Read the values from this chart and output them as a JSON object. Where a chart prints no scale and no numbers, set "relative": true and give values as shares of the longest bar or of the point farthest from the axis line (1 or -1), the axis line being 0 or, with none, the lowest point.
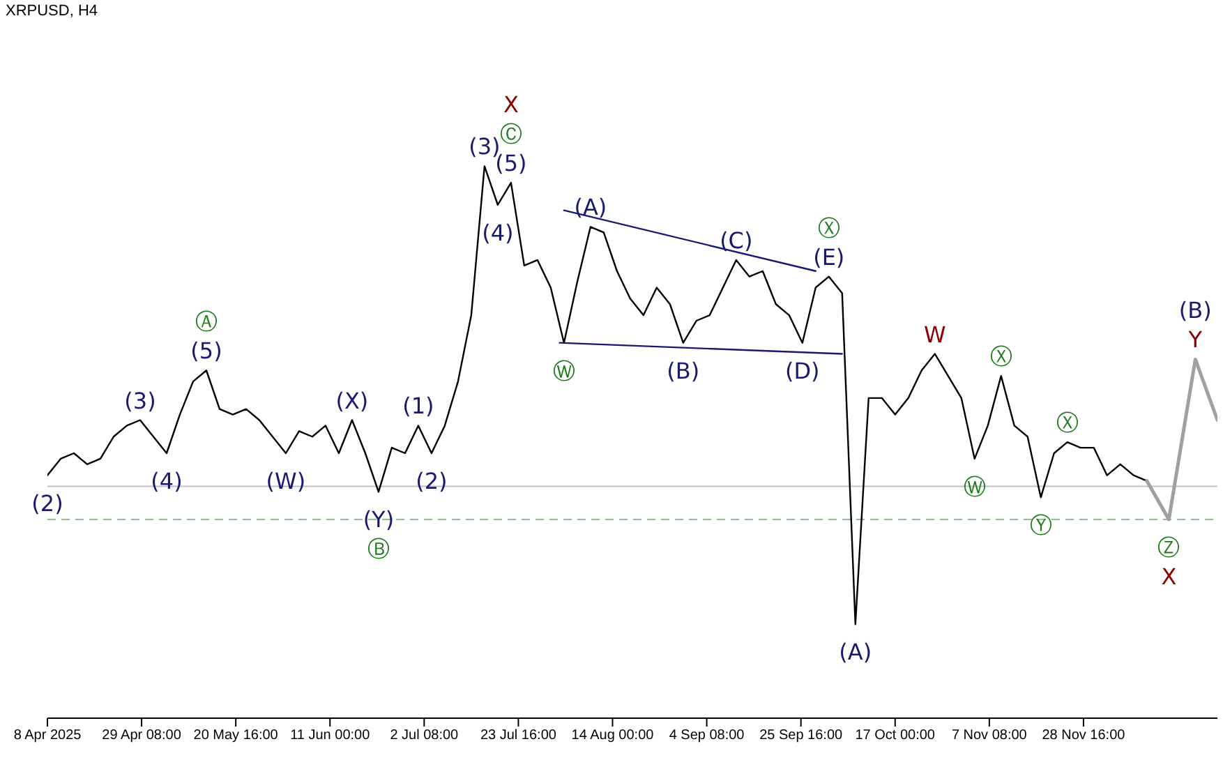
{
  "chart_data": {
    "type": "line",
    "title": "XRPUSD, H4",
    "relative": true,
    "marker": "none",
    "line_style": "solid",
    "grid": false,
    "legend": false,
    "x": [
      "2025-04-08",
      "2025-04-11",
      "2025-04-14",
      "2025-04-17",
      "2025-04-20",
      "2025-04-23",
      "2025-04-26",
      "2025-04-29",
      "2025-05-02",
      "2025-05-05",
      "2025-05-08",
      "2025-05-11",
      "2025-05-14",
      "2025-05-17",
      "2025-05-20",
      "2025-05-23",
      "2025-05-26",
      "2025-05-29",
      "2025-06-01",
      "2025-06-04",
      "2025-06-07",
      "2025-06-10",
      "2025-06-13",
      "2025-06-16",
      "2025-06-19",
      "2025-06-22",
      "2025-06-25",
      "2025-06-28",
      "2025-07-01",
      "2025-07-04",
      "2025-07-07",
      "2025-07-10",
      "2025-07-13",
      "2025-07-16",
      "2025-07-19",
      "2025-07-22",
      "2025-07-25",
      "2025-07-28",
      "2025-07-31",
      "2025-08-03",
      "2025-08-06",
      "2025-08-09",
      "2025-08-12",
      "2025-08-15",
      "2025-08-18",
      "2025-08-21",
      "2025-08-24",
      "2025-08-27",
      "2025-08-30",
      "2025-09-02",
      "2025-09-05",
      "2025-09-08",
      "2025-09-11",
      "2025-09-14",
      "2025-09-17",
      "2025-09-20",
      "2025-09-23",
      "2025-09-26",
      "2025-09-29",
      "2025-10-02",
      "2025-10-05",
      "2025-10-08",
      "2025-10-11",
      "2025-10-14",
      "2025-10-17",
      "2025-10-20",
      "2025-10-23",
      "2025-10-26",
      "2025-10-29",
      "2025-11-01",
      "2025-11-04",
      "2025-11-07",
      "2025-11-10",
      "2025-11-13",
      "2025-11-16",
      "2025-11-19",
      "2025-11-22",
      "2025-11-25",
      "2025-11-28",
      "2025-12-01",
      "2025-12-04",
      "2025-12-07",
      "2025-12-10",
      "2025-12-13"
    ],
    "xlim": [
      "2025-04-08",
      "2025-12-29"
    ],
    "xticks": [
      {
        "value": "2025-04-08",
        "label": "8 Apr 2025"
      },
      {
        "value": "2025-04-29T08:00",
        "label": "29 Apr 08:00"
      },
      {
        "value": "2025-05-20T16:00",
        "label": "20 May 16:00"
      },
      {
        "value": "2025-06-11T00:00",
        "label": "11 Jun 00:00"
      },
      {
        "value": "2025-07-02T08:00",
        "label": "2 Jul 08:00"
      },
      {
        "value": "2025-07-23T16:00",
        "label": "23 Jul 16:00"
      },
      {
        "value": "2025-08-14T00:00",
        "label": "14 Aug 00:00"
      },
      {
        "value": "2025-09-04T08:00",
        "label": "4 Sep 08:00"
      },
      {
        "value": "2025-09-25T16:00",
        "label": "25 Sep 16:00"
      },
      {
        "value": "2025-10-17T00:00",
        "label": "17 Oct 00:00"
      },
      {
        "value": "2025-11-07T08:00",
        "label": "7 Nov 08:00"
      },
      {
        "value": "2025-11-28T16:00",
        "label": "28 Nov 16:00"
      }
    ],
    "series": [
      {
        "color": "#000000",
        "values": [
          0.44,
          0.47,
          0.48,
          0.46,
          0.47,
          0.51,
          0.53,
          0.54,
          0.51,
          0.48,
          0.55,
          0.61,
          0.63,
          0.56,
          0.55,
          0.56,
          0.54,
          0.51,
          0.48,
          0.52,
          0.51,
          0.53,
          0.48,
          0.54,
          0.48,
          0.41,
          0.49,
          0.48,
          0.53,
          0.48,
          0.53,
          0.61,
          0.73,
          1,
          0.93,
          0.97,
          0.82,
          0.83,
          0.78,
          0.68,
          0.79,
          0.89,
          0.88,
          0.81,
          0.76,
          0.73,
          0.78,
          0.75,
          0.68,
          0.72,
          0.73,
          0.78,
          0.83,
          0.8,
          0.81,
          0.75,
          0.73,
          0.68,
          0.78,
          0.8,
          0.77,
          0.17,
          0.58,
          0.58,
          0.55,
          0.58,
          0.63,
          0.66,
          0.62,
          0.58,
          0.47,
          0.53,
          0.62,
          0.53,
          0.51,
          0.4,
          0.48,
          0.5,
          0.49,
          0.49,
          0.44,
          0.46,
          0.44,
          0.43
        ]
      },
      {
        "color": "#a0a0a0",
        "x": [
          "2025-12-13",
          "2025-12-18",
          "2025-12-24",
          "2025-12-29"
        ],
        "values": [
          0.43,
          0.36,
          0.65,
          0.54
        ]
      },
      {
        "color": "#191970",
        "x": [
          "2025-08-03",
          "2025-09-29"
        ],
        "values": [
          0.92,
          0.81
        ]
      },
      {
        "color": "#191970",
        "x": [
          "2025-08-02",
          "2025-10-05"
        ],
        "values": [
          0.68,
          0.66
        ]
      }
    ],
    "ref_lines": [
      {
        "axis": "y",
        "value": 0.42,
        "color": "#c0c0c0"
      },
      {
        "axis": "y",
        "value": 0.36,
        "color": "#90c090",
        "line_style": "dashed"
      }
    ],
    "annotations": [
      {
        "text": "(2)",
        "x": "2025-04-08",
        "y": 0.44
      },
      {
        "text": "(3)",
        "x": "2025-04-29",
        "y": 0.54
      },
      {
        "text": "(4)",
        "x": "2025-05-05",
        "y": 0.48
      },
      {
        "text": "(5)",
        "x": "2025-05-14",
        "y": 0.63
      },
      {
        "text": "Ⓐ",
        "x": "2025-05-14",
        "y": 0.63
      },
      {
        "text": "(W)",
        "x": "2025-06-01",
        "y": 0.48
      },
      {
        "text": "(X)",
        "x": "2025-06-16",
        "y": 0.54
      },
      {
        "text": "(Y)",
        "x": "2025-06-22",
        "y": 0.41
      },
      {
        "text": "Ⓑ",
        "x": "2025-06-22",
        "y": 0.41
      },
      {
        "text": "(1)",
        "x": "2025-07-01",
        "y": 0.53
      },
      {
        "text": "(2)",
        "x": "2025-07-04",
        "y": 0.48
      },
      {
        "text": "(3)",
        "x": "2025-07-16",
        "y": 1
      },
      {
        "text": "(4)",
        "x": "2025-07-19",
        "y": 0.93
      },
      {
        "text": "(5)",
        "x": "2025-07-22",
        "y": 0.97
      },
      {
        "text": "Ⓒ",
        "x": "2025-07-22",
        "y": 0.97
      },
      {
        "text": "X",
        "x": "2025-07-22",
        "y": 0.97
      },
      {
        "text": "Ⓦ",
        "x": "2025-08-03",
        "y": 0.68
      },
      {
        "text": "(A)",
        "x": "2025-08-09",
        "y": 0.89
      },
      {
        "text": "(B)",
        "x": "2025-08-30",
        "y": 0.68
      },
      {
        "text": "(C)",
        "x": "2025-09-11",
        "y": 0.83
      },
      {
        "text": "(D)",
        "x": "2025-09-26",
        "y": 0.68
      },
      {
        "text": "(E)",
        "x": "2025-10-02",
        "y": 0.8
      },
      {
        "text": "Ⓧ",
        "x": "2025-10-02",
        "y": 0.8
      },
      {
        "text": "(A)",
        "x": "2025-10-08",
        "y": 0.17
      },
      {
        "text": "W",
        "x": "2025-10-26",
        "y": 0.66
      },
      {
        "text": "Ⓦ",
        "x": "2025-11-04",
        "y": 0.47
      },
      {
        "text": "Ⓧ",
        "x": "2025-11-10",
        "y": 0.62
      },
      {
        "text": "Ⓨ",
        "x": "2025-11-19",
        "y": 0.4
      },
      {
        "text": "Ⓧ",
        "x": "2025-11-25",
        "y": 0.5
      },
      {
        "text": "Ⓩ",
        "x": "2025-12-18",
        "y": 0.36
      },
      {
        "text": "X",
        "x": "2025-12-18",
        "y": 0.36
      },
      {
        "text": "Y",
        "x": "2025-12-24",
        "y": 0.65
      },
      {
        "text": "(B)",
        "x": "2025-12-24",
        "y": 0.65
      }
    ]
  }
}
